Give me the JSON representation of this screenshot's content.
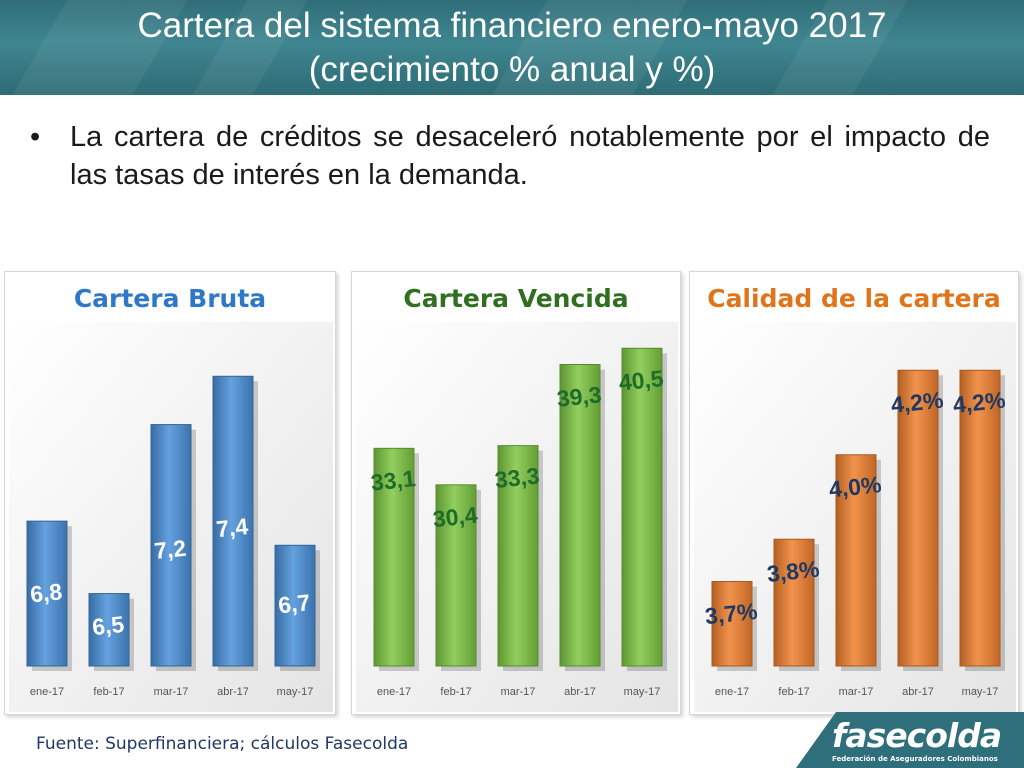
{
  "header": {
    "title_line1": "Cartera del sistema financiero enero-mayo 2017",
    "title_line2": "(crecimiento % anual y %)"
  },
  "bullet": {
    "symbol": "•",
    "text": "La cartera de créditos se desaceleró notablemente por el impacto de las tasas de interés en la demanda."
  },
  "footer": {
    "source": "Fuente: Superfinanciera; cálculos Fasecolda"
  },
  "logo": {
    "name": "fasecolda",
    "subtitle": "Federación de Aseguradores Colombianos"
  },
  "colors": {
    "header_bg": "#3a7f89",
    "bruta": "#4a90d9",
    "vencida": "#7dc642",
    "calidad": "#f0802e"
  },
  "chart_data": [
    {
      "type": "bar",
      "title": "Cartera Bruta",
      "categories": [
        "ene-17",
        "feb-17",
        "mar-17",
        "abr-17",
        "may-17"
      ],
      "values": [
        6.8,
        6.5,
        7.2,
        7.4,
        6.7
      ],
      "labels": [
        "6,8",
        "6,5",
        "7,2",
        "7,4",
        "6,7"
      ],
      "ylim": [
        6.2,
        7.6
      ],
      "color": "#4a90d9",
      "label_color": "#ffffff",
      "title_color": "#2e78c7"
    },
    {
      "type": "bar",
      "title": "Cartera Vencida",
      "categories": [
        "ene-17",
        "feb-17",
        "mar-17",
        "abr-17",
        "may-17"
      ],
      "values": [
        33.1,
        30.4,
        33.3,
        39.3,
        40.5
      ],
      "labels": [
        "33,1",
        "30,4",
        "33,3",
        "39,3",
        "40,5"
      ],
      "ylim": [
        17,
        42
      ],
      "color": "#7dc642",
      "label_color": "#1e6b2a",
      "title_color": "#2f6f1f"
    },
    {
      "type": "bar",
      "title": "Calidad de la cartera",
      "categories": [
        "ene-17",
        "feb-17",
        "mar-17",
        "abr-17",
        "may-17"
      ],
      "values": [
        3.7,
        3.8,
        4.0,
        4.2,
        4.2
      ],
      "labels": [
        "3,7%",
        "3,8%",
        "4,0%",
        "4,2%",
        "4,2%"
      ],
      "ylim": [
        3.5,
        4.3
      ],
      "color": "#f0802e",
      "label_color": "#1f3864",
      "title_color": "#e0741a"
    }
  ]
}
